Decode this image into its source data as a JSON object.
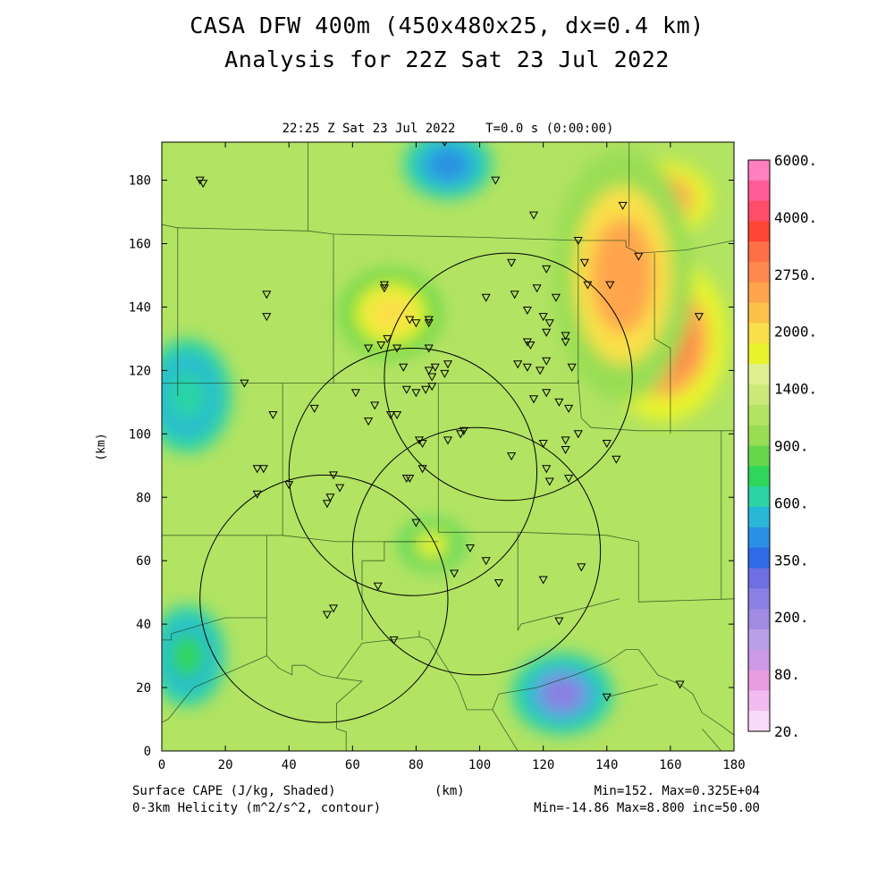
{
  "title": {
    "line1": "CASA DFW 400m (450x480x25, dx=0.4 km)",
    "line2": "Analysis for 22Z Sat 23 Jul 2022"
  },
  "plot_header": "22:25 Z Sat 23 Jul 2022    T=0.0 s (0:00:00)",
  "footer": {
    "left1": "Surface CAPE (J/kg, Shaded)",
    "left2": "0-3km Helicity (m^2/s^2, contour)",
    "center": "(km)",
    "right1": "Min=152. Max=0.325E+04",
    "right2": "Min=-14.86 Max=8.800 inc=50.00"
  },
  "chart_data": {
    "type": "heatmap",
    "field": "Surface CAPE (J/kg, Shaded)",
    "contour_field": "0-3km Helicity (m^2/s^2, contour)",
    "xlabel": "(km)",
    "ylabel": "(km)",
    "xlim": [
      0,
      180
    ],
    "ylim": [
      0,
      192
    ],
    "x_ticks": [
      "0",
      "20",
      "40",
      "60",
      "80",
      "100",
      "120",
      "140",
      "160",
      "180"
    ],
    "y_ticks": [
      "0",
      "20",
      "40",
      "60",
      "80",
      "100",
      "120",
      "140",
      "160",
      "180"
    ],
    "x_tick_values": [
      0,
      20,
      40,
      60,
      80,
      100,
      120,
      140,
      160,
      180
    ],
    "y_tick_values": [
      0,
      20,
      40,
      60,
      80,
      100,
      120,
      140,
      160,
      180
    ],
    "cape_min": 152,
    "cape_max": 3250,
    "helicity_min": -14.86,
    "helicity_max": 8.8,
    "helicity_inc": 50.0,
    "colorbar": {
      "labels": [
        "6000.",
        "4000.",
        "2750.",
        "2000.",
        "1400.",
        "900.",
        "600.",
        "350.",
        "200.",
        "80.",
        "20."
      ],
      "colors": [
        "#ff7fbf",
        "#ff5c95",
        "#ff4d6a",
        "#ff4534",
        "#ff6f47",
        "#ff8a50",
        "#ffa54e",
        "#fbc24a",
        "#f9e04a",
        "#e8f42b",
        "#e0f090",
        "#cbe97a",
        "#b2e362",
        "#99dd55",
        "#66d74c",
        "#2fd65a",
        "#2bd3a6",
        "#29b7d8",
        "#2b8fe3",
        "#2f6be6",
        "#6f6fe3",
        "#8a7fe3",
        "#a18ae3",
        "#b9a0e6",
        "#cc9ae6",
        "#e79ce0",
        "#f2bbf0",
        "#f9daf9"
      ]
    },
    "cape_blobs": [
      {
        "x": 158,
        "y": 130,
        "rx": 20,
        "ry": 26,
        "cape": 3000
      },
      {
        "x": 157,
        "y": 174,
        "rx": 16,
        "ry": 12,
        "cape": 2700
      },
      {
        "x": 145,
        "y": 150,
        "rx": 22,
        "ry": 40,
        "cape": 2300
      },
      {
        "x": 72,
        "y": 138,
        "rx": 16,
        "ry": 14,
        "cape": 1900
      },
      {
        "x": 85,
        "y": 65,
        "rx": 10,
        "ry": 8,
        "cape": 1450
      },
      {
        "x": 90,
        "y": 185,
        "rx": 14,
        "ry": 11,
        "cape": 420
      },
      {
        "x": 126,
        "y": 18,
        "rx": 16,
        "ry": 13,
        "cape": 230
      },
      {
        "x": 8,
        "y": 112,
        "rx": 14,
        "ry": 18,
        "cape": 500
      },
      {
        "x": 8,
        "y": 30,
        "rx": 12,
        "ry": 16,
        "cape": 650
      }
    ],
    "radar_coverage_circles": [
      {
        "x": 109,
        "y": 118,
        "r": 39
      },
      {
        "x": 79,
        "y": 88,
        "r": 39
      },
      {
        "x": 99,
        "y": 63,
        "r": 39
      },
      {
        "x": 51,
        "y": 48,
        "r": 39
      }
    ],
    "station_markers": [
      [
        12,
        180
      ],
      [
        13,
        179
      ],
      [
        89,
        192
      ],
      [
        105,
        180
      ],
      [
        117,
        169
      ],
      [
        145,
        172
      ],
      [
        131,
        161
      ],
      [
        150,
        156
      ],
      [
        110,
        154
      ],
      [
        121,
        152
      ],
      [
        133,
        154
      ],
      [
        33,
        144
      ],
      [
        33,
        137
      ],
      [
        70,
        146
      ],
      [
        70,
        147
      ],
      [
        111,
        144
      ],
      [
        118,
        146
      ],
      [
        102,
        143
      ],
      [
        124,
        143
      ],
      [
        134,
        147
      ],
      [
        141,
        147
      ],
      [
        169,
        137
      ],
      [
        78,
        136
      ],
      [
        84,
        136
      ],
      [
        80,
        135
      ],
      [
        84,
        135
      ],
      [
        115,
        139
      ],
      [
        120,
        137
      ],
      [
        122,
        135
      ],
      [
        127,
        131
      ],
      [
        121,
        132
      ],
      [
        127,
        129
      ],
      [
        115,
        129
      ],
      [
        116,
        128
      ],
      [
        65,
        127
      ],
      [
        69,
        128
      ],
      [
        71,
        130
      ],
      [
        74,
        127
      ],
      [
        84,
        127
      ],
      [
        76,
        121
      ],
      [
        86,
        121
      ],
      [
        90,
        122
      ],
      [
        85,
        118
      ],
      [
        84,
        120
      ],
      [
        89,
        119
      ],
      [
        112,
        122
      ],
      [
        115,
        121
      ],
      [
        119,
        120
      ],
      [
        121,
        123
      ],
      [
        129,
        121
      ],
      [
        26,
        116
      ],
      [
        61,
        113
      ],
      [
        77,
        114
      ],
      [
        80,
        113
      ],
      [
        83,
        114
      ],
      [
        85,
        115
      ],
      [
        67,
        109
      ],
      [
        117,
        111
      ],
      [
        121,
        113
      ],
      [
        125,
        110
      ],
      [
        128,
        108
      ],
      [
        35,
        106
      ],
      [
        48,
        108
      ],
      [
        65,
        104
      ],
      [
        72,
        106
      ],
      [
        74,
        106
      ],
      [
        81,
        98
      ],
      [
        82,
        97
      ],
      [
        90,
        98
      ],
      [
        94,
        100
      ],
      [
        95,
        101
      ],
      [
        120,
        97
      ],
      [
        127,
        98
      ],
      [
        131,
        100
      ],
      [
        140,
        97
      ],
      [
        143,
        92
      ],
      [
        110,
        93
      ],
      [
        127,
        95
      ],
      [
        30,
        89
      ],
      [
        32,
        89
      ],
      [
        82,
        89
      ],
      [
        121,
        89
      ],
      [
        77,
        86
      ],
      [
        78,
        86
      ],
      [
        40,
        84
      ],
      [
        54,
        87
      ],
      [
        56,
        83
      ],
      [
        122,
        85
      ],
      [
        128,
        86
      ],
      [
        30,
        81
      ],
      [
        53,
        80
      ],
      [
        52,
        78
      ],
      [
        80,
        72
      ],
      [
        97,
        64
      ],
      [
        102,
        60
      ],
      [
        92,
        56
      ],
      [
        132,
        58
      ],
      [
        68,
        52
      ],
      [
        106,
        53
      ],
      [
        120,
        54
      ],
      [
        54,
        45
      ],
      [
        52,
        43
      ],
      [
        125,
        41
      ],
      [
        73,
        35
      ],
      [
        140,
        17
      ],
      [
        163,
        21
      ]
    ],
    "county_lines": [
      [
        [
          0,
          166
        ],
        [
          5,
          165
        ]
      ],
      [
        [
          5,
          165
        ],
        [
          5,
          112
        ]
      ],
      [
        [
          46,
          192
        ],
        [
          46,
          164
        ]
      ],
      [
        [
          5,
          165
        ],
        [
          46,
          164
        ],
        [
          54,
          163
        ],
        [
          100,
          162
        ],
        [
          131,
          161
        ],
        [
          146,
          161
        ],
        [
          146,
          159
        ],
        [
          150,
          157
        ],
        [
          165,
          158
        ],
        [
          180,
          161
        ]
      ],
      [
        [
          54,
          163
        ],
        [
          54,
          116
        ]
      ],
      [
        [
          131,
          161
        ],
        [
          131,
          116
        ]
      ],
      [
        [
          147,
          192
        ],
        [
          147,
          159
        ]
      ],
      [
        [
          155,
          157
        ],
        [
          155,
          130
        ],
        [
          160,
          127
        ],
        [
          160,
          100
        ]
      ],
      [
        [
          0,
          116
        ],
        [
          54,
          116
        ],
        [
          100,
          116
        ],
        [
          131,
          116
        ],
        [
          131,
          117
        ]
      ],
      [
        [
          38,
          116
        ],
        [
          38,
          68
        ]
      ],
      [
        [
          87,
          116
        ],
        [
          87,
          69
        ]
      ],
      [
        [
          131,
          117
        ],
        [
          132,
          105
        ],
        [
          135,
          102
        ],
        [
          150,
          101
        ],
        [
          160,
          101
        ],
        [
          180,
          101
        ]
      ],
      [
        [
          0,
          68
        ],
        [
          38,
          68
        ],
        [
          55,
          66
        ],
        [
          65,
          66
        ],
        [
          80,
          66
        ],
        [
          87,
          66
        ]
      ],
      [
        [
          87,
          69
        ],
        [
          112,
          69
        ],
        [
          112,
          38
        ]
      ],
      [
        [
          80,
          66
        ],
        [
          70,
          66
        ],
        [
          70,
          60
        ],
        [
          63,
          60
        ],
        [
          63,
          35
        ]
      ],
      [
        [
          112,
          69
        ],
        [
          140,
          68
        ],
        [
          145,
          67
        ],
        [
          150,
          66
        ],
        [
          150,
          64
        ],
        [
          150,
          47
        ],
        [
          180,
          48
        ]
      ],
      [
        [
          176,
          101
        ],
        [
          176,
          48
        ]
      ],
      [
        [
          33,
          68
        ],
        [
          33,
          42
        ]
      ],
      [
        [
          0,
          35
        ],
        [
          3,
          35
        ],
        [
          3,
          37
        ],
        [
          20,
          42
        ],
        [
          33,
          42
        ]
      ],
      [
        [
          33,
          42
        ],
        [
          33,
          30
        ]
      ],
      [
        [
          33,
          30
        ],
        [
          10,
          20
        ],
        [
          2,
          10
        ],
        [
          0,
          9
        ]
      ],
      [
        [
          33,
          30
        ],
        [
          37,
          26
        ],
        [
          41,
          24
        ],
        [
          41,
          27
        ],
        [
          45,
          27
        ],
        [
          50,
          24
        ],
        [
          55,
          23
        ]
      ],
      [
        [
          55,
          23
        ],
        [
          63,
          34
        ],
        [
          81,
          36
        ],
        [
          81,
          38
        ]
      ],
      [
        [
          55,
          23
        ],
        [
          63,
          22
        ],
        [
          55,
          15
        ],
        [
          55,
          7
        ],
        [
          58,
          6
        ],
        [
          58,
          0
        ]
      ],
      [
        [
          81,
          36
        ],
        [
          84,
          35
        ],
        [
          93,
          21
        ],
        [
          96,
          13
        ]
      ],
      [
        [
          96,
          13
        ],
        [
          104,
          13
        ],
        [
          106,
          18
        ],
        [
          118,
          20
        ],
        [
          130,
          24
        ],
        [
          140,
          28
        ],
        [
          146,
          32
        ],
        [
          150,
          32
        ]
      ],
      [
        [
          104,
          13
        ],
        [
          112,
          0
        ]
      ],
      [
        [
          112,
          38
        ],
        [
          113,
          40
        ],
        [
          144,
          48
        ]
      ],
      [
        [
          150,
          32
        ],
        [
          156,
          24
        ],
        [
          163,
          21
        ],
        [
          167,
          18
        ],
        [
          170,
          12
        ],
        [
          176,
          8
        ],
        [
          180,
          5
        ]
      ],
      [
        [
          170,
          7
        ],
        [
          176,
          0
        ]
      ],
      [
        [
          140,
          17
        ],
        [
          156,
          21
        ]
      ]
    ]
  }
}
